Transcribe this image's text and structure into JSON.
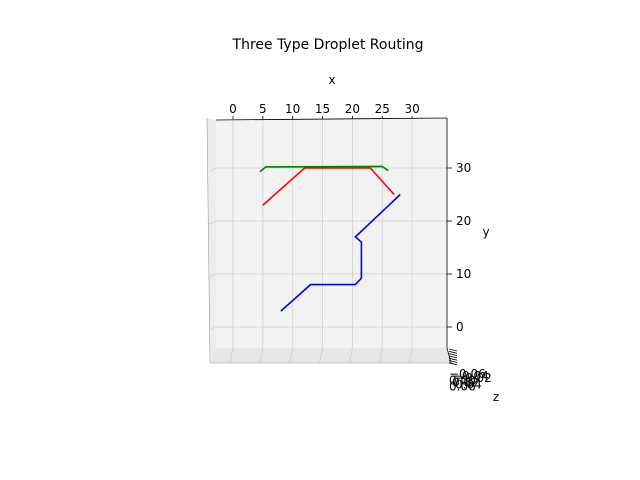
{
  "chart_data": {
    "type": "line",
    "title": "Three Type Droplet Routing",
    "xlabel": "x",
    "ylabel": "y",
    "zlabel": "z",
    "projection": "3d, viewed from above (z axis nearly perpendicular to screen)",
    "x_ticks": [
      "0",
      "5",
      "10",
      "15",
      "20",
      "25",
      "30"
    ],
    "y_ticks": [
      "0",
      "10",
      "20",
      "30"
    ],
    "z_ticks": [
      "−0.06",
      "−0.04",
      "−0.02",
      "0.00",
      "0.02",
      "0.04",
      "0.06"
    ],
    "grid": true,
    "series": [
      {
        "color": "#0000ff",
        "points": [
          [
            8,
            3
          ],
          [
            13,
            8
          ],
          [
            20.5,
            8
          ],
          [
            21.5,
            9.2
          ],
          [
            21.5,
            16
          ],
          [
            20.5,
            17
          ],
          [
            28,
            25
          ]
        ]
      },
      {
        "color": "#ff0000",
        "points": [
          [
            5,
            23
          ],
          [
            12,
            30
          ],
          [
            23,
            30
          ],
          [
            27,
            25
          ]
        ]
      },
      {
        "color": "#008000",
        "points": [
          [
            4.5,
            29.3
          ],
          [
            5.5,
            30.2
          ],
          [
            25,
            30.3
          ],
          [
            26,
            29.5
          ]
        ]
      }
    ]
  }
}
